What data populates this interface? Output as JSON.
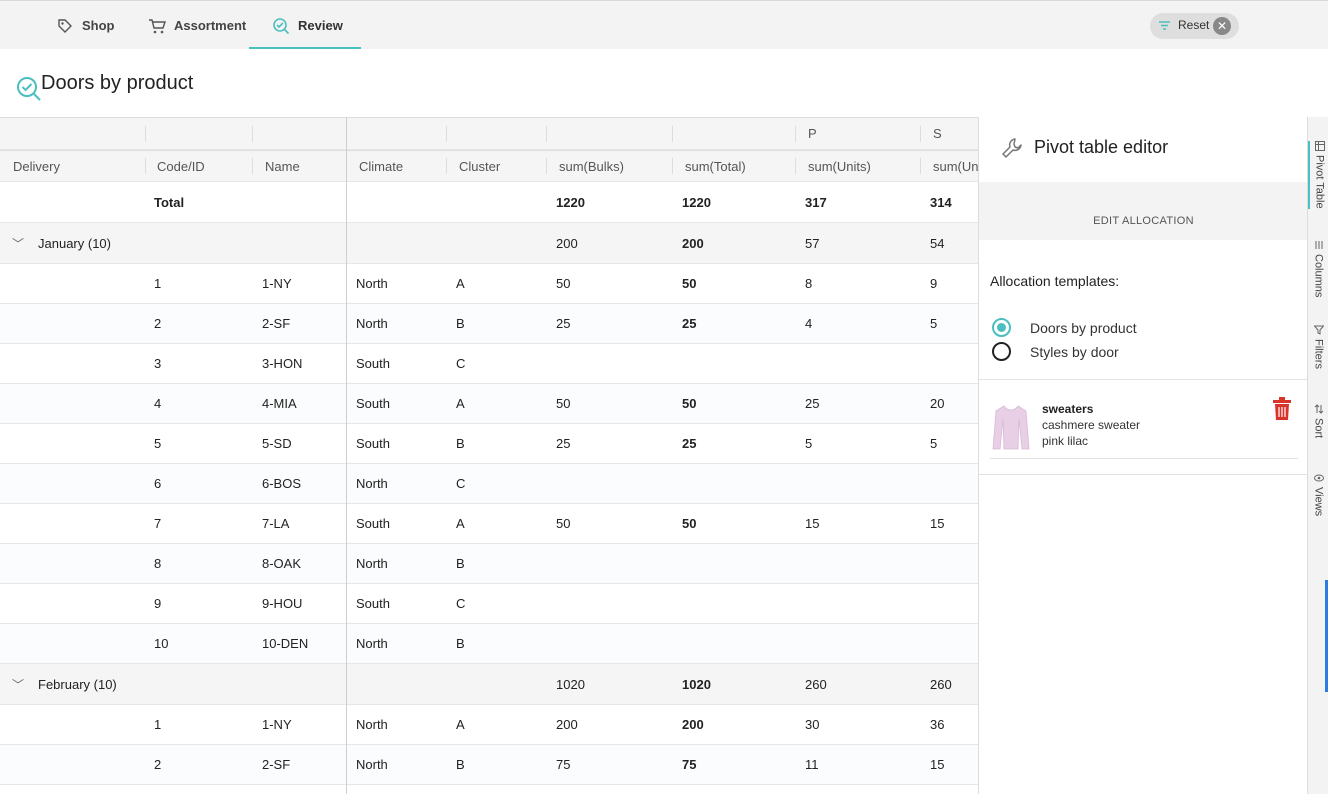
{
  "nav": {
    "tabs": [
      {
        "label": "Shop",
        "icon": "tag-icon"
      },
      {
        "label": "Assortment",
        "icon": "cart-icon"
      },
      {
        "label": "Review",
        "icon": "check-search-icon",
        "active": true
      }
    ],
    "reset_label": "Reset"
  },
  "page": {
    "title": "Doors by product"
  },
  "grid": {
    "group_headers": [
      "",
      "",
      "",
      "",
      "",
      "",
      "",
      "P",
      "S"
    ],
    "columns": [
      "Delivery",
      "Code/ID",
      "Name",
      "Climate",
      "Cluster",
      "sum(Bulks)",
      "sum(Total)",
      "sum(Units)",
      "sum(Un"
    ],
    "total_row": {
      "label": "Total",
      "bulks": "1220",
      "total": "1220",
      "units_p": "317",
      "units_s": "314"
    },
    "groups": [
      {
        "label": "January (10)",
        "bulks": "200",
        "total": "200",
        "units_p": "57",
        "units_s": "54",
        "rows": [
          {
            "id": "1",
            "name": "1-NY",
            "climate": "North",
            "cluster": "A",
            "bulks": "50",
            "total": "50",
            "units_p": "8",
            "units_s": "9"
          },
          {
            "id": "2",
            "name": "2-SF",
            "climate": "North",
            "cluster": "B",
            "bulks": "25",
            "total": "25",
            "units_p": "4",
            "units_s": "5"
          },
          {
            "id": "3",
            "name": "3-HON",
            "climate": "South",
            "cluster": "C",
            "bulks": "",
            "total": "",
            "units_p": "",
            "units_s": ""
          },
          {
            "id": "4",
            "name": "4-MIA",
            "climate": "South",
            "cluster": "A",
            "bulks": "50",
            "total": "50",
            "units_p": "25",
            "units_s": "20"
          },
          {
            "id": "5",
            "name": "5-SD",
            "climate": "South",
            "cluster": "B",
            "bulks": "25",
            "total": "25",
            "units_p": "5",
            "units_s": "5"
          },
          {
            "id": "6",
            "name": "6-BOS",
            "climate": "North",
            "cluster": "C",
            "bulks": "",
            "total": "",
            "units_p": "",
            "units_s": ""
          },
          {
            "id": "7",
            "name": "7-LA",
            "climate": "South",
            "cluster": "A",
            "bulks": "50",
            "total": "50",
            "units_p": "15",
            "units_s": "15"
          },
          {
            "id": "8",
            "name": "8-OAK",
            "climate": "North",
            "cluster": "B",
            "bulks": "",
            "total": "",
            "units_p": "",
            "units_s": ""
          },
          {
            "id": "9",
            "name": "9-HOU",
            "climate": "South",
            "cluster": "C",
            "bulks": "",
            "total": "",
            "units_p": "",
            "units_s": ""
          },
          {
            "id": "10",
            "name": "10-DEN",
            "climate": "North",
            "cluster": "B",
            "bulks": "",
            "total": "",
            "units_p": "",
            "units_s": ""
          }
        ]
      },
      {
        "label": "February (10)",
        "bulks": "1020",
        "total": "1020",
        "units_p": "260",
        "units_s": "260",
        "rows": [
          {
            "id": "1",
            "name": "1-NY",
            "climate": "North",
            "cluster": "A",
            "bulks": "200",
            "total": "200",
            "units_p": "30",
            "units_s": "36"
          },
          {
            "id": "2",
            "name": "2-SF",
            "climate": "North",
            "cluster": "B",
            "bulks": "75",
            "total": "75",
            "units_p": "11",
            "units_s": "15"
          }
        ]
      }
    ]
  },
  "panel": {
    "title": "Pivot table editor",
    "edit_allocation": "EDIT ALLOCATION",
    "templates_label": "Allocation templates:",
    "templates": [
      {
        "label": "Doors by product",
        "selected": true
      },
      {
        "label": "Styles by door",
        "selected": false
      }
    ],
    "product": {
      "category": "sweaters",
      "name": "cashmere sweater",
      "color": "pink lilac"
    }
  },
  "side_tabs": [
    {
      "label": "Pivot Table",
      "icon": "table-icon",
      "active": true
    },
    {
      "label": "Columns",
      "icon": "columns-icon"
    },
    {
      "label": "Filters",
      "icon": "filter-icon"
    },
    {
      "label": "Sort",
      "icon": "sort-icon"
    },
    {
      "label": "Views",
      "icon": "eye-icon"
    }
  ],
  "colors": {
    "accent": "#4bbfbf",
    "danger": "#d9342b",
    "product": "#e8cfe6"
  }
}
